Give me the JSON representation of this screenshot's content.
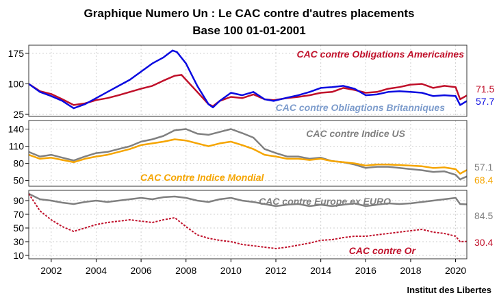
{
  "chart_data": {
    "type": "line",
    "title": "Graphique Numero Un : Le CAC contre d'autres placements",
    "subtitle": "Base 100 01-01-2001",
    "source": "Institut des Libertes",
    "x_ticks": [
      "2002",
      "2004",
      "2006",
      "2008",
      "2010",
      "2012",
      "2014",
      "2016",
      "2018",
      "2020"
    ],
    "xlim": [
      2001.0,
      2020.5
    ],
    "grid": true,
    "panels": [
      {
        "ylim": [
          20,
          195
        ],
        "yticks": [
          "25",
          "100",
          "175"
        ],
        "series": [
          {
            "name": "CAC contre Obligations Americaines",
            "color": "#c0102a",
            "style": "solid",
            "end_value": "71.5",
            "x": [
              2001.0,
              2001.5,
              2002.0,
              2002.5,
              2003.0,
              2003.5,
              2004.0,
              2004.5,
              2005.0,
              2005.5,
              2006.0,
              2006.5,
              2007.0,
              2007.5,
              2007.8,
              2008.0,
              2008.5,
              2009.0,
              2009.2,
              2009.5,
              2010.0,
              2010.5,
              2011.0,
              2011.5,
              2011.9,
              2012.5,
              2013.0,
              2013.5,
              2014.0,
              2014.5,
              2015.0,
              2015.5,
              2016.0,
              2016.5,
              2017.0,
              2017.5,
              2018.0,
              2018.5,
              2019.0,
              2019.5,
              2020.0,
              2020.2,
              2020.5
            ],
            "values": [
              100,
              82,
              75,
              62,
              48,
              52,
              60,
              65,
              72,
              80,
              88,
              95,
              108,
              120,
              122,
              110,
              80,
              50,
              45,
              58,
              68,
              65,
              74,
              62,
              60,
              65,
              68,
              72,
              78,
              80,
              90,
              85,
              78,
              80,
              88,
              92,
              98,
              100,
              90,
              95,
              92,
              62,
              71.5
            ]
          },
          {
            "name": "CAC contre Obliagtions Britanniques",
            "color": "#0a0ae0",
            "style": "solid",
            "end_value": "57.7",
            "x": [
              2001.0,
              2001.5,
              2002.0,
              2002.5,
              2003.0,
              2003.5,
              2004.0,
              2004.5,
              2005.0,
              2005.5,
              2006.0,
              2006.5,
              2007.0,
              2007.4,
              2007.6,
              2008.0,
              2008.5,
              2009.0,
              2009.2,
              2009.5,
              2010.0,
              2010.5,
              2011.0,
              2011.5,
              2011.9,
              2012.5,
              2013.0,
              2013.5,
              2014.0,
              2014.5,
              2015.0,
              2015.5,
              2016.0,
              2016.5,
              2017.0,
              2017.5,
              2018.0,
              2018.5,
              2019.0,
              2019.5,
              2020.0,
              2020.2,
              2020.5
            ],
            "values": [
              100,
              80,
              70,
              58,
              40,
              50,
              65,
              80,
              95,
              110,
              130,
              150,
              165,
              182,
              178,
              150,
              95,
              50,
              42,
              58,
              78,
              72,
              80,
              62,
              58,
              66,
              72,
              80,
              90,
              92,
              95,
              88,
              72,
              74,
              80,
              82,
              80,
              78,
              70,
              72,
              70,
              48,
              57.7
            ]
          }
        ],
        "labels": [
          {
            "text": "CAC contre Obligations Americaines",
            "color": "#c0102a"
          },
          {
            "text": "CAC contre Obliagtions Britanniques",
            "color": "#7d9ccc"
          }
        ]
      },
      {
        "ylim": [
          40,
          155
        ],
        "yticks": [
          "50",
          "80",
          "110",
          "140"
        ],
        "series": [
          {
            "name": "CAC contre Indice US",
            "color": "#808080",
            "style": "solid",
            "end_value": "57.1",
            "x": [
              2001.0,
              2001.5,
              2002.0,
              2002.5,
              2003.0,
              2003.5,
              2004.0,
              2004.5,
              2005.0,
              2005.5,
              2006.0,
              2006.5,
              2007.0,
              2007.5,
              2008.0,
              2008.5,
              2009.0,
              2009.5,
              2010.0,
              2010.5,
              2011.0,
              2011.5,
              2012.0,
              2012.5,
              2013.0,
              2013.5,
              2014.0,
              2014.5,
              2015.0,
              2015.5,
              2016.0,
              2016.5,
              2017.0,
              2017.5,
              2018.0,
              2018.5,
              2019.0,
              2019.5,
              2020.0,
              2020.2,
              2020.5
            ],
            "values": [
              100,
              92,
              95,
              90,
              85,
              92,
              98,
              100,
              105,
              110,
              118,
              122,
              128,
              138,
              140,
              132,
              130,
              135,
              140,
              133,
              125,
              105,
              98,
              92,
              92,
              88,
              90,
              84,
              82,
              78,
              72,
              74,
              74,
              72,
              70,
              68,
              65,
              66,
              60,
              52,
              57.1
            ]
          },
          {
            "name": "CAC Contre Indice Mondial",
            "color": "#f5a500",
            "style": "solid",
            "end_value": "68.4",
            "x": [
              2001.0,
              2001.5,
              2002.0,
              2002.5,
              2003.0,
              2003.5,
              2004.0,
              2004.5,
              2005.0,
              2005.5,
              2006.0,
              2006.5,
              2007.0,
              2007.5,
              2008.0,
              2008.5,
              2009.0,
              2009.5,
              2010.0,
              2010.5,
              2011.0,
              2011.5,
              2012.0,
              2012.5,
              2013.0,
              2013.5,
              2014.0,
              2014.5,
              2015.0,
              2015.5,
              2016.0,
              2016.5,
              2017.0,
              2017.5,
              2018.0,
              2018.5,
              2019.0,
              2019.5,
              2020.0,
              2020.2,
              2020.5
            ],
            "values": [
              95,
              88,
              90,
              86,
              82,
              88,
              92,
              95,
              100,
              105,
              112,
              115,
              118,
              122,
              120,
              115,
              110,
              115,
              118,
              112,
              105,
              95,
              92,
              88,
              88,
              86,
              88,
              84,
              82,
              80,
              76,
              78,
              78,
              77,
              76,
              75,
              72,
              73,
              70,
              62,
              68.4
            ]
          }
        ],
        "labels": [
          {
            "text": "CAC contre Indice US",
            "color": "#808080"
          },
          {
            "text": "CAC Contre Indice Mondial",
            "color": "#f5a500"
          }
        ]
      },
      {
        "ylim": [
          5,
          105
        ],
        "yticks": [
          "10",
          "30",
          "50",
          "70",
          "90"
        ],
        "series": [
          {
            "name": "CAC contre Europe ex EURO",
            "color": "#808080",
            "style": "solid",
            "end_value": "84.5",
            "x": [
              2001.0,
              2001.5,
              2002.0,
              2002.5,
              2003.0,
              2003.5,
              2004.0,
              2004.5,
              2005.0,
              2005.5,
              2006.0,
              2006.5,
              2007.0,
              2007.5,
              2008.0,
              2008.5,
              2009.0,
              2009.5,
              2010.0,
              2010.5,
              2011.0,
              2011.5,
              2012.0,
              2012.5,
              2013.0,
              2013.5,
              2014.0,
              2014.5,
              2015.0,
              2015.5,
              2016.0,
              2016.5,
              2017.0,
              2017.5,
              2018.0,
              2018.5,
              2019.0,
              2019.5,
              2020.0,
              2020.2,
              2020.5
            ],
            "values": [
              100,
              92,
              90,
              87,
              85,
              88,
              90,
              88,
              90,
              92,
              94,
              92,
              95,
              96,
              94,
              90,
              88,
              92,
              94,
              90,
              88,
              85,
              82,
              84,
              85,
              82,
              84,
              82,
              84,
              86,
              82,
              84,
              86,
              85,
              86,
              88,
              90,
              92,
              94,
              85,
              84.5
            ]
          },
          {
            "name": "CAC contre Or",
            "color": "#c0102a",
            "style": "dashed",
            "end_value": "30.4",
            "x": [
              2001.0,
              2001.5,
              2002.0,
              2002.5,
              2003.0,
              2003.5,
              2004.0,
              2004.5,
              2005.0,
              2005.5,
              2006.0,
              2006.5,
              2007.0,
              2007.5,
              2008.0,
              2008.5,
              2009.0,
              2009.5,
              2010.0,
              2010.5,
              2011.0,
              2011.5,
              2012.0,
              2012.5,
              2013.0,
              2013.5,
              2014.0,
              2014.5,
              2015.0,
              2015.5,
              2016.0,
              2016.5,
              2017.0,
              2017.5,
              2018.0,
              2018.5,
              2019.0,
              2019.5,
              2020.0,
              2020.2,
              2020.5
            ],
            "values": [
              100,
              75,
              62,
              52,
              45,
              50,
              55,
              58,
              60,
              62,
              60,
              58,
              62,
              65,
              52,
              40,
              35,
              32,
              30,
              26,
              24,
              22,
              20,
              22,
              25,
              28,
              32,
              33,
              36,
              38,
              38,
              40,
              42,
              44,
              46,
              48,
              44,
              42,
              38,
              30,
              30.4
            ]
          }
        ],
        "labels": [
          {
            "text": "CAC contre Europe ex EURO",
            "color": "#808080"
          },
          {
            "text": "CAC contre Or",
            "color": "#c0102a"
          }
        ]
      }
    ]
  }
}
